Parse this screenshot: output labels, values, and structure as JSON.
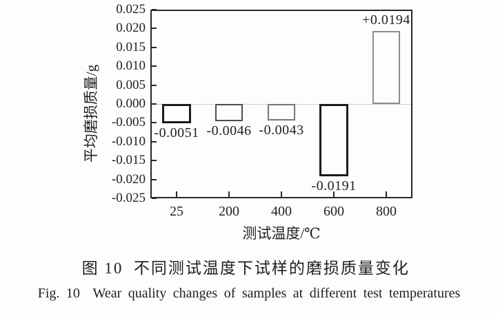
{
  "figure": {
    "caption_zh": "图 10  不同测试温度下试样的磨损质量变化",
    "caption_en": "Fig. 10  Wear quality changes of samples at different test temperatures"
  },
  "chart_data": {
    "type": "bar",
    "title": "",
    "xlabel": "测试温度/℃",
    "ylabel": "平均磨损质量/g",
    "categories": [
      "25",
      "200",
      "400",
      "600",
      "800"
    ],
    "values": [
      -0.0051,
      -0.0046,
      -0.0043,
      -0.0191,
      0.0194
    ],
    "bar_labels": [
      "-0.0051",
      "-0.0046",
      "-0.0043",
      "-0.0191",
      "+0.0194"
    ],
    "bar_fill": "white",
    "bar_edge_colors": [
      "#1a1a1a",
      "#4d4d4d",
      "#757575",
      "#1a1a1a",
      "#8c8c8c"
    ],
    "bar_edge_weights": [
      3,
      2,
      2,
      3,
      2
    ],
    "ylim": [
      -0.025,
      0.025
    ],
    "ytick_step": 0.005,
    "ytick_labels": [
      "0.025",
      "0.020",
      "0.015",
      "0.010",
      "0.005",
      "0.000",
      "-0.005",
      "-0.010",
      "-0.015",
      "-0.020",
      "-0.025"
    ],
    "grid": false,
    "zero_line_style": "dotted",
    "legend": "none"
  }
}
